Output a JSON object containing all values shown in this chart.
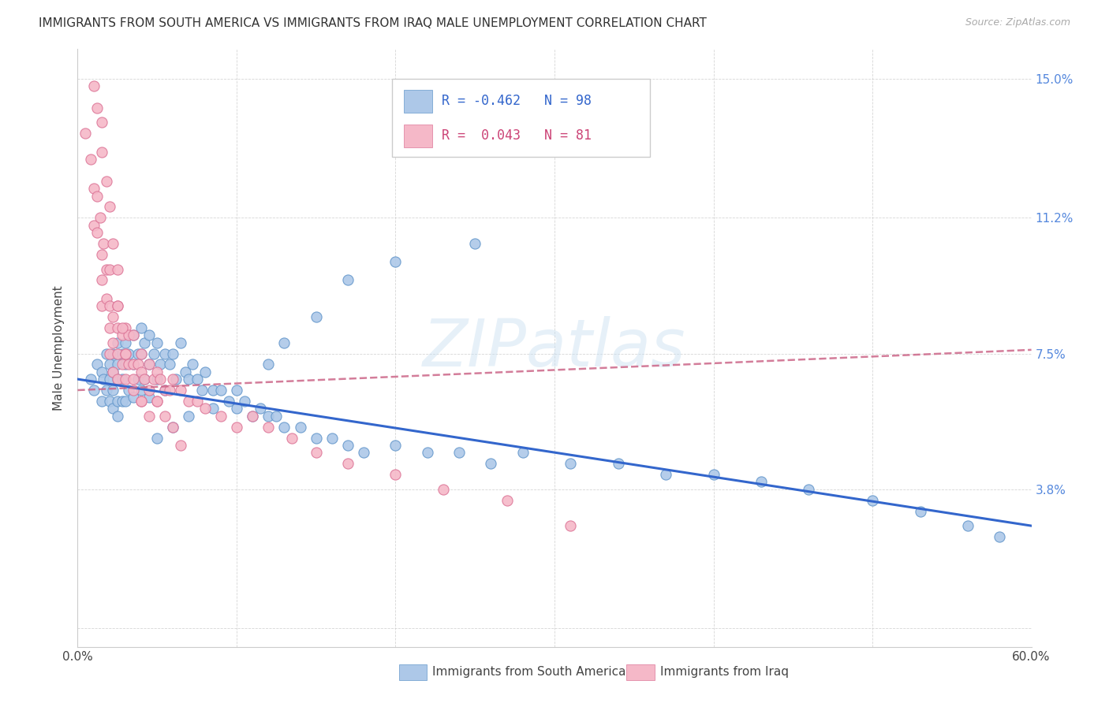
{
  "title": "IMMIGRANTS FROM SOUTH AMERICA VS IMMIGRANTS FROM IRAQ MALE UNEMPLOYMENT CORRELATION CHART",
  "source": "Source: ZipAtlas.com",
  "ylabel": "Male Unemployment",
  "yticks": [
    0.0,
    0.038,
    0.075,
    0.112,
    0.15
  ],
  "ytick_labels": [
    "",
    "3.8%",
    "7.5%",
    "11.2%",
    "15.0%"
  ],
  "xlim": [
    0.0,
    0.6
  ],
  "ylim": [
    -0.005,
    0.158
  ],
  "color_sa": "#adc8e8",
  "color_sa_edge": "#6699cc",
  "color_iraq": "#f5b8c8",
  "color_iraq_edge": "#dd7799",
  "color_sa_line": "#3366cc",
  "color_iraq_line": "#cc6688",
  "watermark": "ZIPatlas",
  "sa_trend_x0": 0.0,
  "sa_trend_y0": 0.068,
  "sa_trend_x1": 0.6,
  "sa_trend_y1": 0.028,
  "iraq_trend_x0": 0.0,
  "iraq_trend_y0": 0.065,
  "iraq_trend_x1": 0.6,
  "iraq_trend_y1": 0.076,
  "sa_x": [
    0.008,
    0.01,
    0.012,
    0.015,
    0.015,
    0.016,
    0.018,
    0.018,
    0.02,
    0.02,
    0.02,
    0.022,
    0.022,
    0.022,
    0.022,
    0.025,
    0.025,
    0.025,
    0.025,
    0.025,
    0.028,
    0.028,
    0.028,
    0.03,
    0.03,
    0.03,
    0.032,
    0.032,
    0.035,
    0.035,
    0.035,
    0.038,
    0.038,
    0.04,
    0.04,
    0.04,
    0.042,
    0.042,
    0.045,
    0.045,
    0.045,
    0.048,
    0.05,
    0.05,
    0.052,
    0.055,
    0.055,
    0.058,
    0.06,
    0.062,
    0.065,
    0.068,
    0.07,
    0.072,
    0.075,
    0.078,
    0.08,
    0.085,
    0.09,
    0.095,
    0.1,
    0.105,
    0.11,
    0.115,
    0.12,
    0.125,
    0.13,
    0.14,
    0.15,
    0.16,
    0.17,
    0.18,
    0.2,
    0.22,
    0.24,
    0.26,
    0.28,
    0.31,
    0.34,
    0.37,
    0.4,
    0.43,
    0.46,
    0.5,
    0.53,
    0.56,
    0.58,
    0.25,
    0.2,
    0.17,
    0.15,
    0.13,
    0.12,
    0.1,
    0.085,
    0.07,
    0.06,
    0.05
  ],
  "sa_y": [
    0.068,
    0.065,
    0.072,
    0.07,
    0.062,
    0.068,
    0.075,
    0.065,
    0.072,
    0.068,
    0.062,
    0.075,
    0.07,
    0.065,
    0.06,
    0.078,
    0.072,
    0.068,
    0.062,
    0.058,
    0.075,
    0.068,
    0.062,
    0.078,
    0.072,
    0.062,
    0.075,
    0.065,
    0.08,
    0.072,
    0.063,
    0.075,
    0.068,
    0.082,
    0.075,
    0.065,
    0.078,
    0.068,
    0.08,
    0.072,
    0.063,
    0.075,
    0.078,
    0.068,
    0.072,
    0.075,
    0.065,
    0.072,
    0.075,
    0.068,
    0.078,
    0.07,
    0.068,
    0.072,
    0.068,
    0.065,
    0.07,
    0.065,
    0.065,
    0.062,
    0.06,
    0.062,
    0.058,
    0.06,
    0.058,
    0.058,
    0.055,
    0.055,
    0.052,
    0.052,
    0.05,
    0.048,
    0.05,
    0.048,
    0.048,
    0.045,
    0.048,
    0.045,
    0.045,
    0.042,
    0.042,
    0.04,
    0.038,
    0.035,
    0.032,
    0.028,
    0.025,
    0.105,
    0.1,
    0.095,
    0.085,
    0.078,
    0.072,
    0.065,
    0.06,
    0.058,
    0.055,
    0.052
  ],
  "iraq_x": [
    0.005,
    0.008,
    0.01,
    0.01,
    0.012,
    0.012,
    0.014,
    0.015,
    0.015,
    0.015,
    0.016,
    0.018,
    0.018,
    0.02,
    0.02,
    0.02,
    0.02,
    0.022,
    0.022,
    0.022,
    0.025,
    0.025,
    0.025,
    0.025,
    0.028,
    0.028,
    0.03,
    0.03,
    0.03,
    0.032,
    0.032,
    0.035,
    0.035,
    0.035,
    0.038,
    0.04,
    0.04,
    0.04,
    0.042,
    0.045,
    0.045,
    0.048,
    0.05,
    0.05,
    0.052,
    0.055,
    0.058,
    0.06,
    0.065,
    0.07,
    0.075,
    0.08,
    0.09,
    0.1,
    0.11,
    0.12,
    0.135,
    0.15,
    0.17,
    0.2,
    0.23,
    0.27,
    0.31,
    0.01,
    0.012,
    0.015,
    0.015,
    0.018,
    0.02,
    0.022,
    0.025,
    0.025,
    0.028,
    0.03,
    0.035,
    0.04,
    0.045,
    0.05,
    0.055,
    0.06,
    0.065
  ],
  "iraq_y": [
    0.135,
    0.128,
    0.12,
    0.11,
    0.118,
    0.108,
    0.112,
    0.102,
    0.095,
    0.088,
    0.105,
    0.098,
    0.09,
    0.098,
    0.088,
    0.082,
    0.075,
    0.085,
    0.078,
    0.07,
    0.088,
    0.082,
    0.075,
    0.068,
    0.08,
    0.072,
    0.082,
    0.075,
    0.068,
    0.08,
    0.072,
    0.08,
    0.072,
    0.065,
    0.072,
    0.075,
    0.07,
    0.062,
    0.068,
    0.072,
    0.065,
    0.068,
    0.07,
    0.062,
    0.068,
    0.065,
    0.065,
    0.068,
    0.065,
    0.062,
    0.062,
    0.06,
    0.058,
    0.055,
    0.058,
    0.055,
    0.052,
    0.048,
    0.045,
    0.042,
    0.038,
    0.035,
    0.028,
    0.148,
    0.142,
    0.138,
    0.13,
    0.122,
    0.115,
    0.105,
    0.098,
    0.088,
    0.082,
    0.075,
    0.068,
    0.062,
    0.058,
    0.062,
    0.058,
    0.055,
    0.05
  ]
}
